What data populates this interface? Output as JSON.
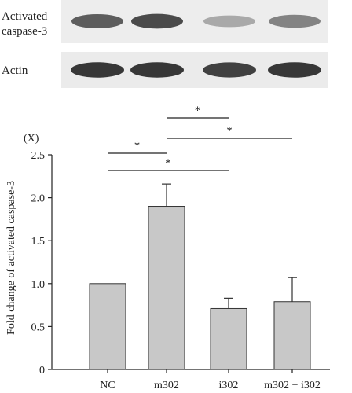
{
  "blot": {
    "rows": [
      {
        "label_lines": [
          "Activated",
          "caspase-3"
        ],
        "band_intensity": [
          0.75,
          0.85,
          0.35,
          0.55
        ]
      },
      {
        "label_lines": [
          "Actin"
        ],
        "band_intensity": [
          0.95,
          0.95,
          0.9,
          0.95
        ]
      }
    ]
  },
  "chart_data": {
    "type": "bar",
    "categories": [
      "NC",
      "m302",
      "i302",
      "m302 + i302"
    ],
    "values": [
      1.0,
      1.9,
      0.71,
      0.79
    ],
    "error_upper": [
      0.0,
      0.26,
      0.12,
      0.28
    ],
    "ylabel": "Fold change of activated caspase-3",
    "yunit": "(X)",
    "ylim": [
      0,
      2.5
    ],
    "yticks": [
      0,
      0.5,
      1.0,
      1.5,
      2.0,
      2.5
    ],
    "ytick_labels": [
      "0",
      "0.5",
      "1.0",
      "1.5",
      "2.0",
      "2.5"
    ],
    "bar_color": "#c8c8c8",
    "significance": [
      {
        "from": 0,
        "to": 1,
        "label": "*"
      },
      {
        "from": 0,
        "to": 2,
        "label": "*"
      },
      {
        "from": 1,
        "to": 2,
        "label": "*"
      },
      {
        "from": 1,
        "to": 3,
        "label": "*"
      }
    ]
  }
}
